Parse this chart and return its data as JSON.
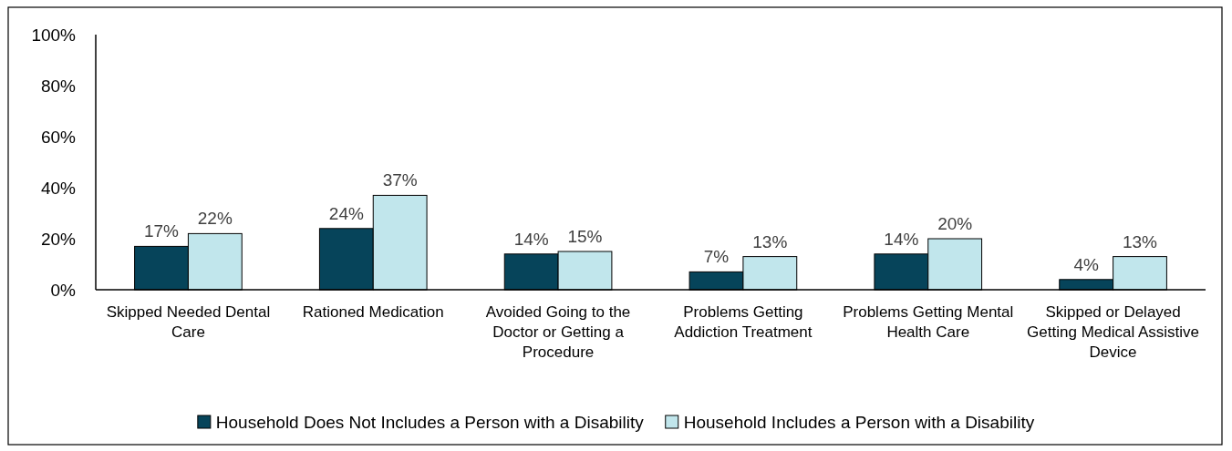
{
  "chart_data": {
    "type": "bar",
    "categories": [
      "Skipped Needed Dental Care",
      "Rationed Medication",
      "Avoided Going to the Doctor or Getting a Procedure",
      "Problems Getting Addiction Treatment",
      "Problems Getting Mental Health Care",
      "Skipped or Delayed Getting Medical Assistive Device"
    ],
    "series": [
      {
        "name": "Household Does Not Includes a Person with a Disability",
        "color": "#06445a",
        "values": [
          17,
          24,
          14,
          7,
          14,
          4
        ],
        "value_labels": [
          "17%",
          "24%",
          "14%",
          "7%",
          "14%",
          "4%"
        ]
      },
      {
        "name": "Household Includes a Person with a Disability",
        "color": "#c1e6ec",
        "values": [
          22,
          37,
          15,
          13,
          20,
          13
        ],
        "value_labels": [
          "22%",
          "37%",
          "15%",
          "13%",
          "20%",
          "13%"
        ]
      }
    ],
    "ylim": [
      0,
      100
    ],
    "yticks": [
      {
        "value": 0,
        "label": "0%"
      },
      {
        "value": 20,
        "label": "20%"
      },
      {
        "value": 40,
        "label": "40%"
      },
      {
        "value": 60,
        "label": "60%"
      },
      {
        "value": 80,
        "label": "80%"
      },
      {
        "value": 100,
        "label": "100%"
      }
    ],
    "grid": false,
    "legend": "bottom"
  }
}
